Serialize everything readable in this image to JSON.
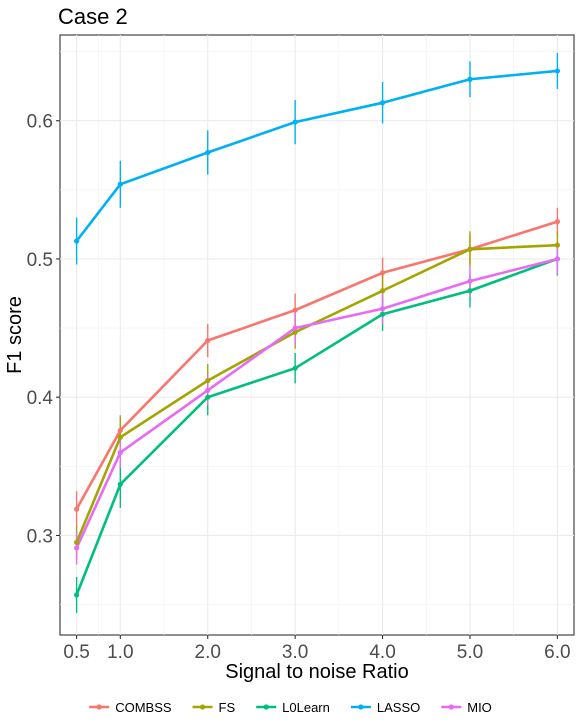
{
  "chart_data": {
    "type": "line",
    "title": "Case 2",
    "xlabel": "Signal to noise Ratio",
    "ylabel": "F1 score",
    "x": [
      0.5,
      1.0,
      2.0,
      3.0,
      4.0,
      5.0,
      6.0
    ],
    "x_tick_labels": [
      "0.5",
      "1.0",
      "2.0",
      "3.0",
      "4.0",
      "5.0",
      "6.0"
    ],
    "xlim": [
      0.31,
      6.19
    ],
    "ylim": [
      0.228,
      0.662
    ],
    "y_ticks": [
      0.3,
      0.4,
      0.5,
      0.6
    ],
    "y_tick_labels": [
      "0.3",
      "0.4",
      "0.5",
      "0.6"
    ],
    "grid": true,
    "error_bars": true,
    "legend_position": "bottom",
    "series": [
      {
        "name": "COMBSS",
        "color": "#F8766D",
        "values": [
          0.319,
          0.376,
          0.441,
          0.463,
          0.49,
          0.507,
          0.527
        ],
        "err": [
          0.013,
          0.011,
          0.012,
          0.012,
          0.011,
          0.011,
          0.01
        ]
      },
      {
        "name": "FS",
        "color": "#A3A500",
        "values": [
          0.295,
          0.371,
          0.412,
          0.447,
          0.477,
          0.507,
          0.51
        ],
        "err": [
          0.012,
          0.015,
          0.012,
          0.012,
          0.012,
          0.013,
          0.01
        ]
      },
      {
        "name": "L0Learn",
        "color": "#00BF7D",
        "values": [
          0.257,
          0.337,
          0.4,
          0.421,
          0.46,
          0.477,
          0.5
        ],
        "err": [
          0.013,
          0.017,
          0.013,
          0.011,
          0.012,
          0.012,
          0.012
        ]
      },
      {
        "name": "LASSO",
        "color": "#00B0F6",
        "values": [
          0.513,
          0.554,
          0.577,
          0.599,
          0.613,
          0.63,
          0.636
        ],
        "err": [
          0.017,
          0.017,
          0.016,
          0.016,
          0.015,
          0.013,
          0.013
        ]
      },
      {
        "name": "MIO",
        "color": "#E76BF3",
        "values": [
          0.291,
          0.36,
          0.405,
          0.45,
          0.464,
          0.484,
          0.5
        ],
        "err": [
          0.012,
          0.011,
          0.011,
          0.012,
          0.011,
          0.011,
          0.011
        ]
      }
    ]
  }
}
